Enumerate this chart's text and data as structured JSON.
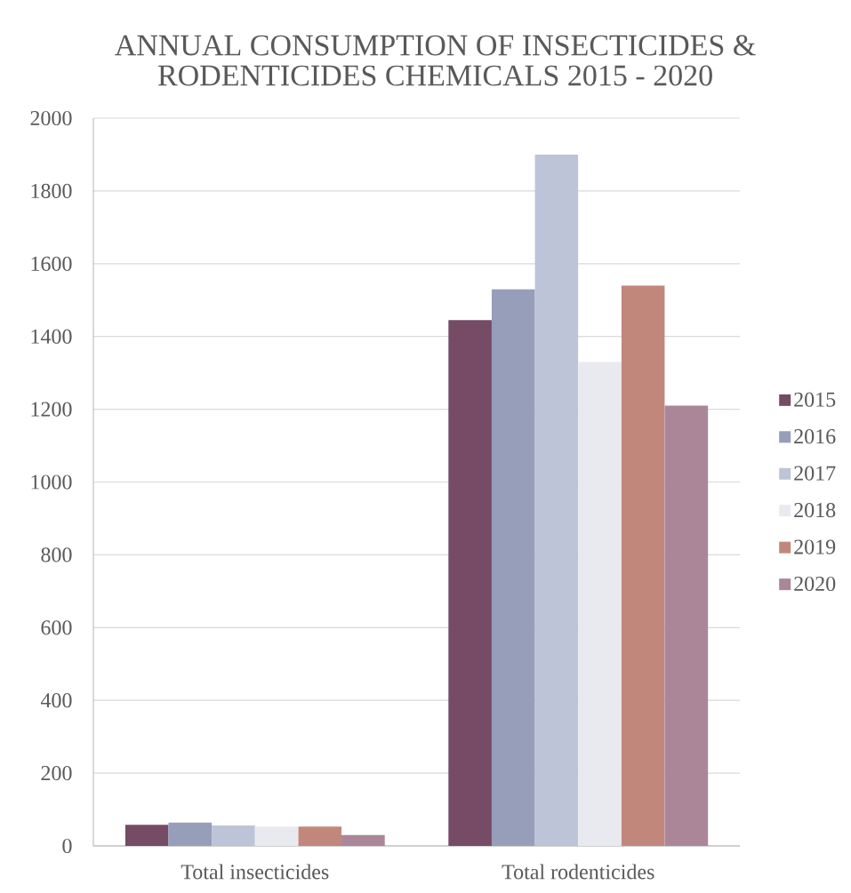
{
  "chart_data": {
    "type": "bar",
    "title": "ANNUAL CONSUMPTION OF INSECTICIDES & RODENTICIDES CHEMICALS 2015 - 2020",
    "categories": [
      "Total insecticides",
      "Total rodenticides"
    ],
    "series": [
      {
        "name": "2015",
        "color": "#754b66",
        "values": [
          58,
          1445
        ]
      },
      {
        "name": "2016",
        "color": "#969eba",
        "values": [
          64,
          1530
        ]
      },
      {
        "name": "2017",
        "color": "#bec4d7",
        "values": [
          56,
          1900
        ]
      },
      {
        "name": "2018",
        "color": "#e9eaf0",
        "values": [
          53,
          1330
        ]
      },
      {
        "name": "2019",
        "color": "#c2877b",
        "values": [
          53,
          1540
        ]
      },
      {
        "name": "2020",
        "color": "#ab8699",
        "values": [
          30,
          1210
        ]
      }
    ],
    "ylim": [
      0,
      2000
    ],
    "yticks": [
      0,
      200,
      400,
      600,
      800,
      1000,
      1200,
      1400,
      1600,
      1800,
      2000
    ],
    "grid": "y",
    "legend": "right"
  }
}
